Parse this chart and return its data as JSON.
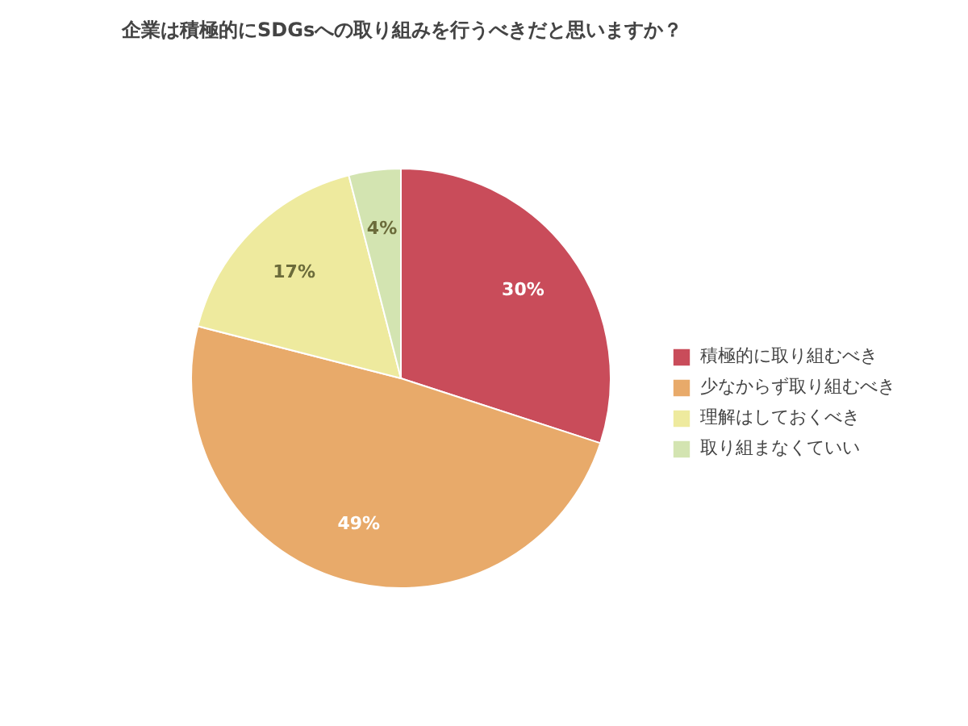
{
  "chart_data": {
    "type": "pie",
    "title": "企業は積極的にSDGsへの取り組みを行うべきだと思いますか？",
    "categories": [
      "積極的に取り組むべき",
      "少なからず取り組むべき",
      "理解はしておくべき",
      "取り組まなくていい"
    ],
    "values": [
      30,
      49,
      17,
      4
    ],
    "colors": [
      "#c94c5a",
      "#e8aa6a",
      "#eeea9e",
      "#d3e4b1"
    ],
    "value_labels": [
      "30%",
      "49%",
      "17%",
      "4%"
    ],
    "legend": "right"
  }
}
